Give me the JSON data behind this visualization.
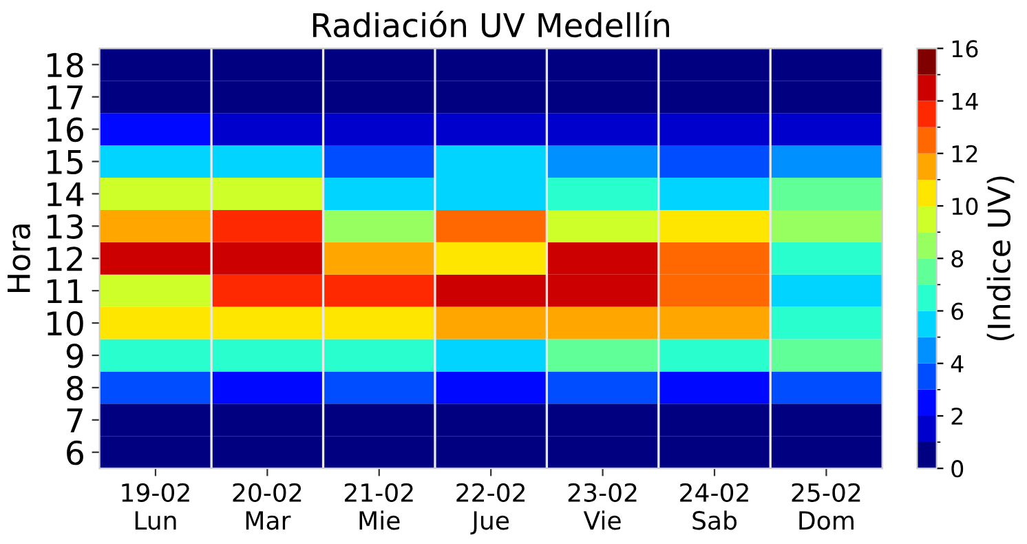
{
  "chart_data": {
    "type": "heatmap",
    "title": "Radiación UV Medellín",
    "ylabel": "Hora",
    "clabel": "(Indice UV)",
    "categories": [
      "19-02\nLun",
      "20-02\nMar",
      "21-02\nMie",
      "22-02\nJue",
      "23-02\nVie",
      "24-02\nSab",
      "25-02\nDom"
    ],
    "y_categories": [
      "18",
      "17",
      "16",
      "15",
      "14",
      "13",
      "12",
      "11",
      "10",
      "9",
      "8",
      "7",
      "6"
    ],
    "cells": [
      [
        0,
        0,
        0,
        0,
        0,
        0,
        0
      ],
      [
        0,
        0,
        0,
        0,
        0,
        0,
        0
      ],
      [
        2,
        1,
        1,
        1,
        1,
        1,
        1
      ],
      [
        5,
        5,
        3,
        5,
        4,
        3,
        4
      ],
      [
        9,
        9,
        5,
        5,
        6,
        5,
        7
      ],
      [
        11,
        13,
        8,
        12,
        9,
        10,
        8
      ],
      [
        14,
        14,
        11,
        10,
        14,
        12,
        6
      ],
      [
        9,
        13,
        13,
        14,
        14,
        12,
        5
      ],
      [
        10,
        10,
        10,
        11,
        11,
        11,
        6
      ],
      [
        6,
        6,
        6,
        5,
        7,
        6,
        7
      ],
      [
        3,
        2,
        3,
        2,
        3,
        2,
        3
      ],
      [
        0,
        0,
        0,
        0,
        0,
        0,
        0
      ],
      [
        0,
        0,
        0,
        0,
        0,
        0,
        0
      ]
    ],
    "clim": [
      0,
      16
    ],
    "cticks": [
      0,
      2,
      4,
      6,
      8,
      10,
      12,
      14,
      16
    ],
    "grid": "x"
  }
}
